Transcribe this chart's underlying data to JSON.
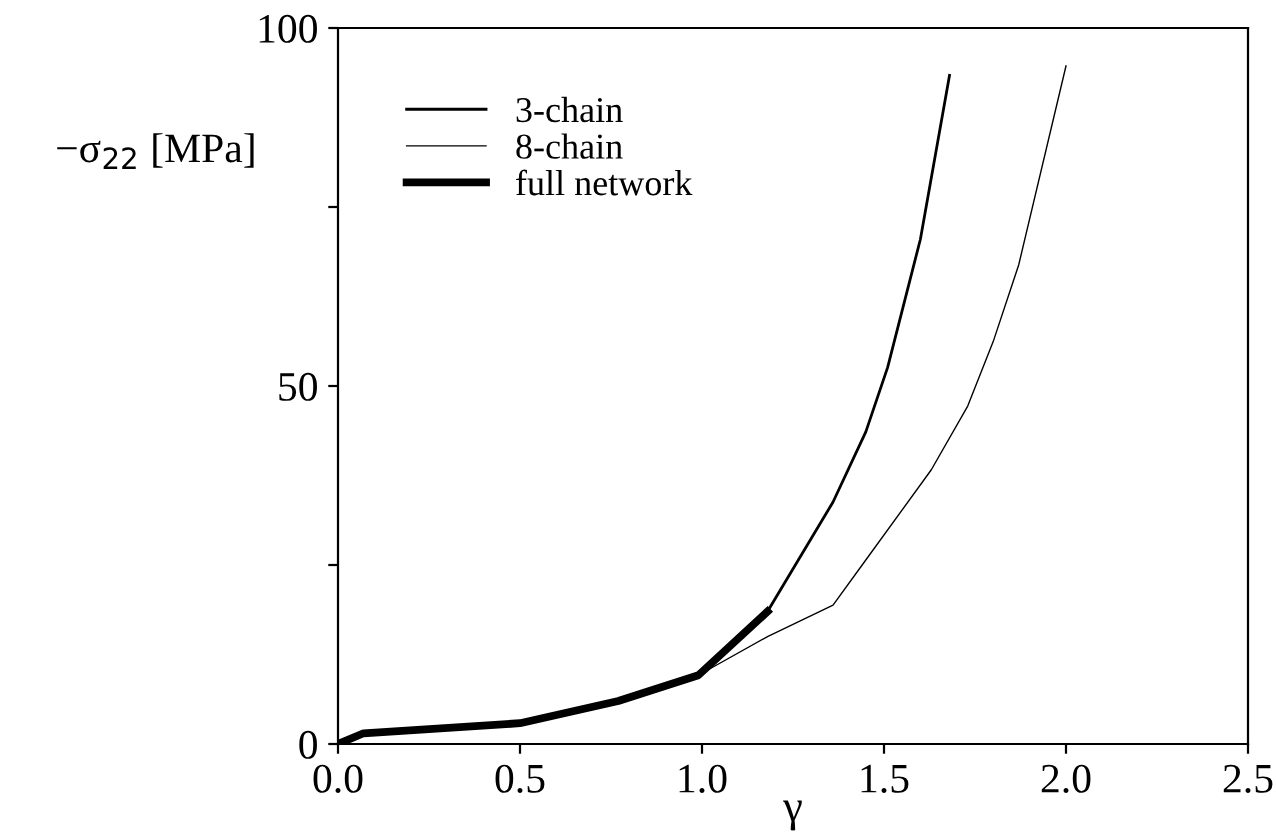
{
  "chart_data": {
    "type": "line",
    "xlabel": "γ",
    "ylabel": "−σ$_{22}$ [MPa]",
    "xlim": [
      0,
      2.5
    ],
    "ylim": [
      0,
      100
    ],
    "xticks": [
      {
        "value": 0,
        "label": "0.0"
      },
      0.5,
      {
        "value": 1,
        "label": "1.0"
      },
      1.5,
      {
        "value": 2,
        "label": "2.0"
      },
      2.5
    ],
    "yticks": [
      0,
      {
        "value": 25,
        "label": null
      },
      50,
      {
        "value": 75,
        "label": null
      },
      100
    ],
    "grid": false,
    "legend": "top left",
    "marker": "none",
    "series": [
      {
        "name": "3-chain",
        "color": "#000000",
        "x": [
          0,
          0.07,
          0.5,
          0.77,
          0.99,
          1.18,
          1.36,
          1.45,
          1.51,
          1.6,
          1.68
        ],
        "values": [
          0,
          1.5,
          2.9,
          6.0,
          9.6,
          18.5,
          33.8,
          43.6,
          52.6,
          70.5,
          93.4
        ]
      },
      {
        "name": "8-chain",
        "color": "#000000",
        "x": [
          0,
          0.07,
          0.5,
          0.77,
          0.99,
          1.18,
          1.36,
          1.45,
          1.63,
          1.73,
          1.8,
          1.87,
          2.0
        ],
        "values": [
          0,
          1.5,
          2.9,
          6.0,
          9.6,
          15.0,
          19.4,
          25.7,
          38.3,
          47.2,
          56.2,
          66.9,
          94.7
        ]
      },
      {
        "name": "full network",
        "color": "#000000",
        "x": [
          0,
          0.07,
          0.5,
          0.77,
          0.99,
          1.18
        ],
        "values": [
          0,
          1.5,
          2.9,
          6.0,
          9.6,
          18.5
        ]
      }
    ]
  }
}
